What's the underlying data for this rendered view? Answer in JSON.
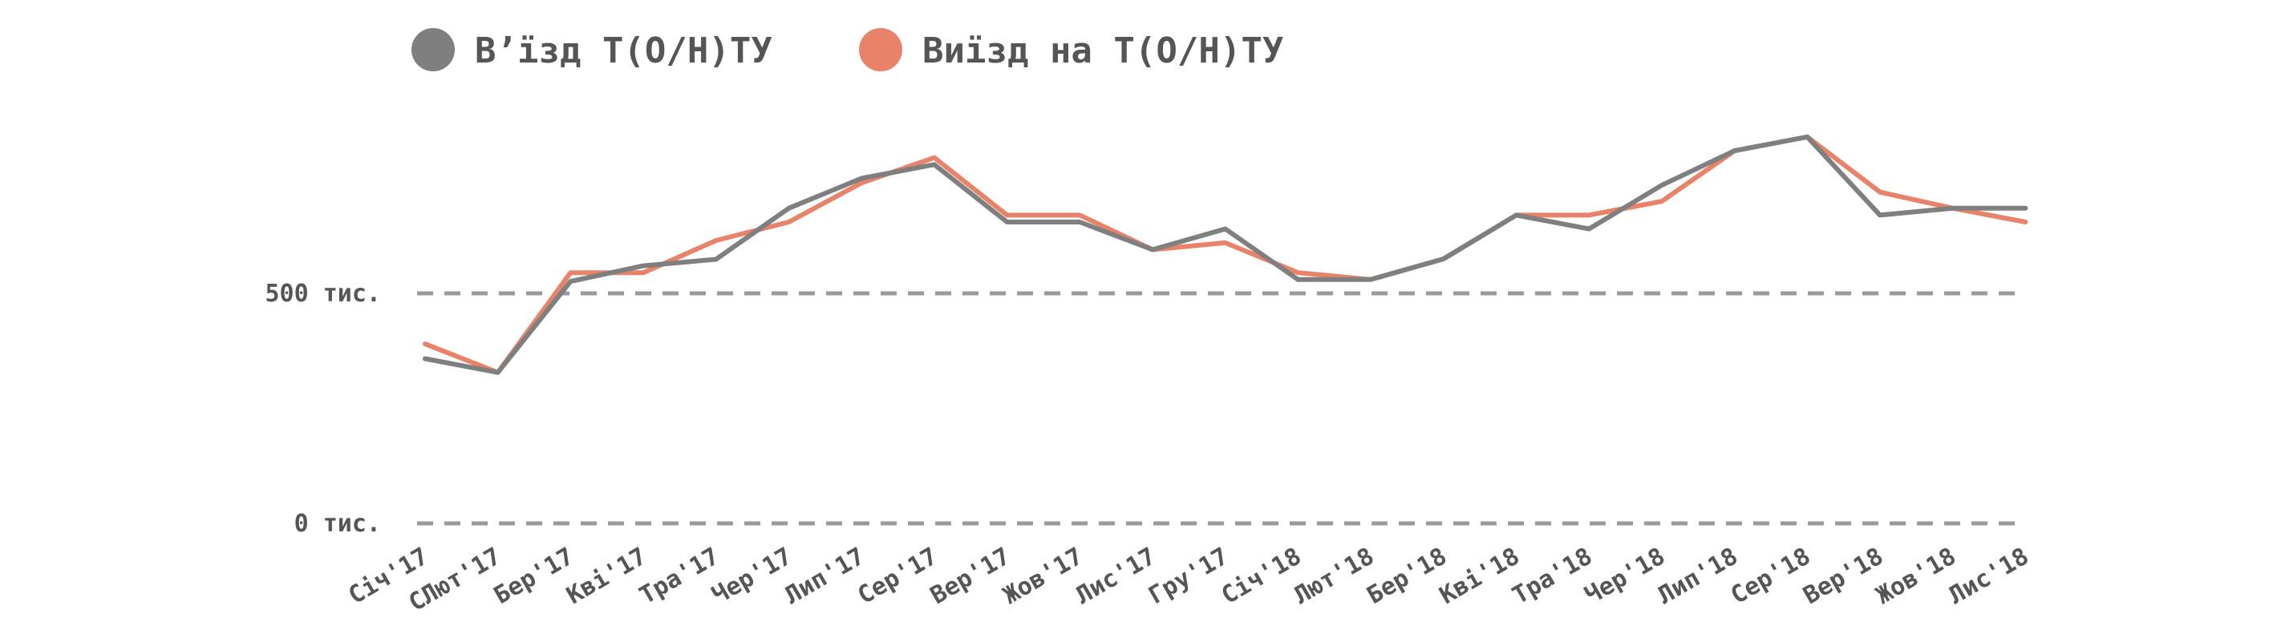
{
  "chart_data": {
    "type": "line",
    "title": "",
    "xlabel": "",
    "ylabel": "",
    "categories": [
      "Січ'17",
      "СЛют'17",
      "Бер'17",
      "Кві'17",
      "Тра'17",
      "Чер'17",
      "Лип'17",
      "Сер'17",
      "Вер'17",
      "Жов'17",
      "Лис'17",
      "Гру'17",
      "Січ'18",
      "Лют'18",
      "Бер'18",
      "Кві'18",
      "Тра'18",
      "Чер'18",
      "Лип'18",
      "Сер'18",
      "Вер'18",
      "Жов'18",
      "Лис'18"
    ],
    "series": [
      {
        "name": "В’їзд Т(О/Н)ТУ",
        "color": "#7f7f7f",
        "values": [
          358,
          328,
          526,
          560,
          574,
          685,
          750,
          780,
          655,
          655,
          595,
          640,
          530,
          530,
          575,
          670,
          640,
          735,
          810,
          840,
          670,
          685,
          685
        ]
      },
      {
        "name": "Виїзд на Т(О/Н)ТУ",
        "color": "#e8836a",
        "values": [
          390,
          328,
          545,
          545,
          615,
          655,
          740,
          795,
          670,
          670,
          595,
          610,
          545,
          530,
          575,
          670,
          670,
          700,
          810,
          840,
          720,
          685,
          655
        ]
      }
    ],
    "yticks": [
      {
        "value": 0,
        "label": "0 тис."
      },
      {
        "value": 500,
        "label": "500 тис."
      }
    ],
    "ylim": [
      0,
      900
    ],
    "grid": true,
    "legend_position": "top-left"
  }
}
